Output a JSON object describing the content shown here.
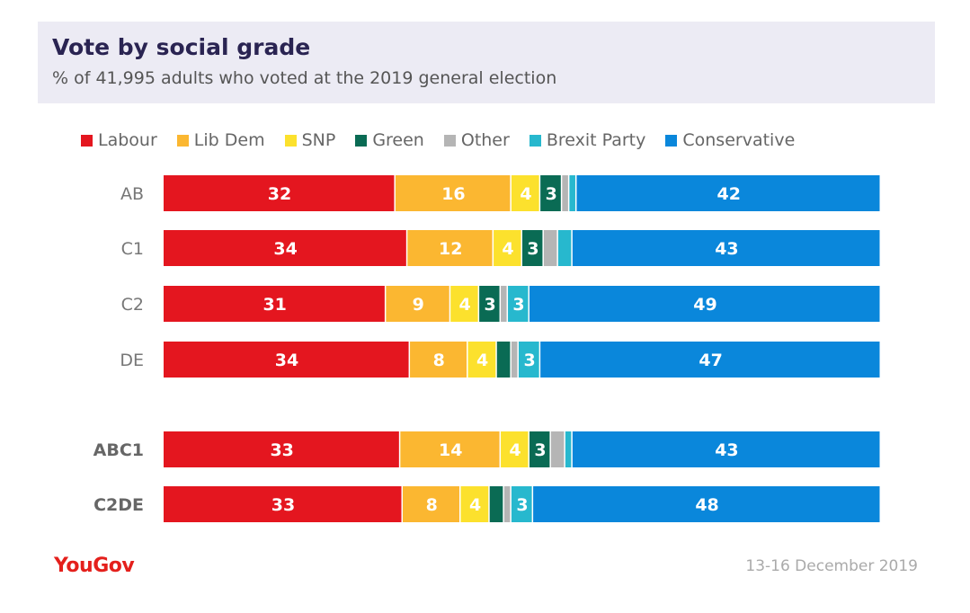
{
  "header": {
    "title": "Vote by social grade",
    "subtitle": "% of 41,995 adults who voted at the 2019 general election"
  },
  "footer": {
    "logo": "YouGov",
    "date": "13-16 December 2019"
  },
  "chart_data": {
    "type": "bar",
    "orientation": "horizontal",
    "stacked": true,
    "title": "Vote by social grade",
    "subtitle": "% of 41,995 adults who voted at the 2019 general election",
    "xlim": [
      0,
      100
    ],
    "legend_position": "top",
    "categories": [
      "AB",
      "C1",
      "C2",
      "DE",
      "ABC1",
      "C2DE"
    ],
    "bold_categories": [
      "ABC1",
      "C2DE"
    ],
    "series": [
      {
        "name": "Labour",
        "color": "#E4161F",
        "values": [
          32,
          34,
          31,
          34,
          33,
          33
        ]
      },
      {
        "name": "Lib Dem",
        "color": "#FBB731",
        "values": [
          16,
          12,
          9,
          8,
          14,
          8
        ]
      },
      {
        "name": "SNP",
        "color": "#FCE12D",
        "values": [
          4,
          4,
          4,
          4,
          4,
          4
        ]
      },
      {
        "name": "Green",
        "color": "#0A6B54",
        "values": [
          3,
          3,
          3,
          2,
          3,
          2
        ]
      },
      {
        "name": "Other",
        "color": "#B5B5B5",
        "values": [
          1,
          2,
          1,
          1,
          2,
          1
        ]
      },
      {
        "name": "Brexit Party",
        "color": "#27B8CE",
        "values": [
          1,
          2,
          3,
          3,
          1,
          3
        ]
      },
      {
        "name": "Conservative",
        "color": "#0A87DB",
        "values": [
          42,
          43,
          49,
          47,
          43,
          48
        ]
      }
    ],
    "data_labels_min": 3
  }
}
